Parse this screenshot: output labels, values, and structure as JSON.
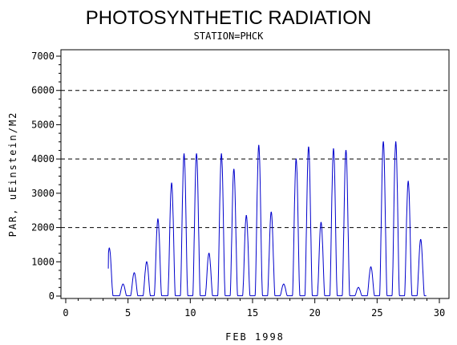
{
  "chart_data": {
    "type": "line",
    "title": "PHOTOSYNTHETIC RADIATION",
    "subtitle": "STATION=PHCK",
    "xlabel": "FEB 1998",
    "ylabel": "PAR, uEinstein/M2",
    "xlim": [
      0,
      30
    ],
    "ylim": [
      0,
      7000
    ],
    "xticks": [
      0,
      5,
      10,
      15,
      20,
      25,
      30
    ],
    "yticks": [
      0,
      1000,
      2000,
      3000,
      4000,
      5000,
      6000,
      7000
    ],
    "reference_lines": [
      2000,
      4000,
      6000
    ],
    "grid": false,
    "line_color": "#0000cc",
    "daily_peaks": [
      {
        "day": 3.5,
        "value": 1400
      },
      {
        "day": 4.6,
        "value": 350
      },
      {
        "day": 5.5,
        "value": 680
      },
      {
        "day": 6.5,
        "value": 1000
      },
      {
        "day": 7.4,
        "value": 2250
      },
      {
        "day": 8.5,
        "value": 3300
      },
      {
        "day": 9.5,
        "value": 4150
      },
      {
        "day": 10.5,
        "value": 4150
      },
      {
        "day": 11.5,
        "value": 1250
      },
      {
        "day": 12.5,
        "value": 4150
      },
      {
        "day": 13.5,
        "value": 3700
      },
      {
        "day": 14.5,
        "value": 2350
      },
      {
        "day": 15.5,
        "value": 4400
      },
      {
        "day": 16.5,
        "value": 2450
      },
      {
        "day": 17.5,
        "value": 350
      },
      {
        "day": 18.5,
        "value": 4000
      },
      {
        "day": 19.5,
        "value": 4350
      },
      {
        "day": 20.5,
        "value": 2150
      },
      {
        "day": 21.5,
        "value": 4300
      },
      {
        "day": 22.5,
        "value": 4250
      },
      {
        "day": 23.5,
        "value": 250
      },
      {
        "day": 24.5,
        "value": 850
      },
      {
        "day": 25.5,
        "value": 4500
      },
      {
        "day": 26.5,
        "value": 4500
      },
      {
        "day": 27.5,
        "value": 3350
      },
      {
        "day": 28.5,
        "value": 1650
      }
    ]
  }
}
